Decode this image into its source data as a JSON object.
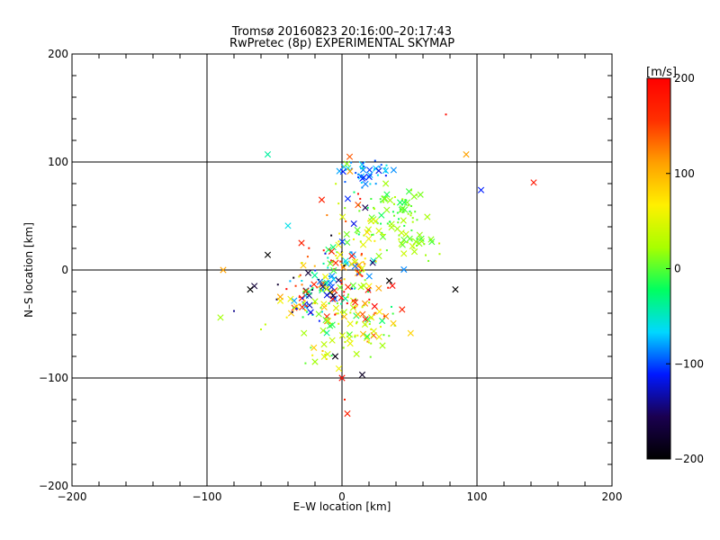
{
  "chart_data": {
    "type": "scatter",
    "title": "Tromsø 20160823 20:16:00–20:17:43",
    "subtitle": "RwPretec (8p) EXPERIMENTAL SKYMAP",
    "xlabel": "E–W location [km]",
    "ylabel": "N–S location [km]",
    "xlim": [
      -200,
      200
    ],
    "ylim": [
      -200,
      200
    ],
    "x_ticks": [
      -200,
      -100,
      0,
      100,
      200
    ],
    "y_ticks": [
      -200,
      -100,
      0,
      100,
      200
    ],
    "x_tick_labels": [
      "−200",
      "−100",
      "0",
      "100",
      "200"
    ],
    "y_tick_labels": [
      "−200",
      "−100",
      "0",
      "100",
      "200"
    ],
    "grid": true,
    "colorbar": {
      "label": "[m/s]",
      "range": [
        -200,
        200
      ],
      "ticks": [
        200,
        100,
        0,
        -100,
        -200
      ],
      "tick_labels": [
        "200",
        "100",
        "0",
        "−100",
        "−200"
      ],
      "colormap": [
        "#000000",
        "#1a0050",
        "#0018ff",
        "#00d8ff",
        "#00ff60",
        "#a8ff00",
        "#fff000",
        "#ffa000",
        "#ff3000",
        "#ff0000"
      ]
    },
    "markers": {
      "large": "cross (x)",
      "small": "dot"
    },
    "points": [
      {
        "x": 77,
        "y": 144,
        "v": 190,
        "m": "d"
      },
      {
        "x": 92,
        "y": 107,
        "v": 110,
        "m": "x"
      },
      {
        "x": -55,
        "y": 107,
        "v": -40,
        "m": "x"
      },
      {
        "x": 103,
        "y": 74,
        "v": -110,
        "m": "x"
      },
      {
        "x": 142,
        "y": 81,
        "v": 180,
        "m": "x"
      },
      {
        "x": -15,
        "y": 65,
        "v": 170,
        "m": "x"
      },
      {
        "x": -40,
        "y": 41,
        "v": -60,
        "m": "x"
      },
      {
        "x": -88,
        "y": 0,
        "v": 110,
        "m": "x"
      },
      {
        "x": -90,
        "y": -44,
        "v": 20,
        "m": "x"
      },
      {
        "x": -68,
        "y": -18,
        "v": -200,
        "m": "x"
      },
      {
        "x": 84,
        "y": -18,
        "v": -200,
        "m": "x"
      },
      {
        "x": 15,
        "y": -97,
        "v": -180,
        "m": "x"
      },
      {
        "x": 0,
        "y": -100,
        "v": 190,
        "m": "x"
      },
      {
        "x": 4,
        "y": -133,
        "v": 170,
        "m": "x"
      },
      {
        "x": 2,
        "y": -120,
        "v": 170,
        "m": "d"
      },
      {
        "x": -30,
        "y": 25,
        "v": 170,
        "m": "x"
      },
      {
        "x": -55,
        "y": 14,
        "v": -200,
        "m": "x"
      },
      {
        "x": 35,
        "y": -10,
        "v": -200,
        "m": "x"
      },
      {
        "x": -5,
        "y": -80,
        "v": -190,
        "m": "x"
      },
      {
        "x": -20,
        "y": -85,
        "v": 20,
        "m": "x"
      },
      {
        "x": 30,
        "y": -70,
        "v": 20,
        "m": "x"
      },
      {
        "x": -80,
        "y": -38,
        "v": -140,
        "m": "d"
      },
      {
        "x": -60,
        "y": -55,
        "v": 30,
        "m": "d"
      }
    ],
    "clusters": [
      {
        "cx": 18,
        "cy": 92,
        "sx": 10,
        "sy": 6,
        "n": 40,
        "vmin": -120,
        "vmax": -40
      },
      {
        "cx": 40,
        "cy": 55,
        "sx": 12,
        "sy": 10,
        "n": 55,
        "vmin": -20,
        "vmax": 30
      },
      {
        "cx": 55,
        "cy": 25,
        "sx": 10,
        "sy": 8,
        "n": 30,
        "vmin": -10,
        "vmax": 40
      },
      {
        "cx": 22,
        "cy": 35,
        "sx": 12,
        "sy": 12,
        "n": 35,
        "vmin": -20,
        "vmax": 80
      },
      {
        "cx": 0,
        "cy": 5,
        "sx": 14,
        "sy": 12,
        "n": 90,
        "vmin": -200,
        "vmax": 200
      },
      {
        "cx": -25,
        "cy": -25,
        "sx": 14,
        "sy": 10,
        "n": 80,
        "vmin": -200,
        "vmax": 200
      },
      {
        "cx": 8,
        "cy": -35,
        "sx": 18,
        "sy": 14,
        "n": 70,
        "vmin": -40,
        "vmax": 200
      },
      {
        "cx": 15,
        "cy": -60,
        "sx": 16,
        "sy": 12,
        "n": 35,
        "vmin": -20,
        "vmax": 60
      },
      {
        "cx": -15,
        "cy": -70,
        "sx": 10,
        "sy": 10,
        "n": 12,
        "vmin": 0,
        "vmax": 100
      },
      {
        "cx": 0,
        "cy": 60,
        "sx": 10,
        "sy": 25,
        "n": 20,
        "vmin": -200,
        "vmax": 200
      }
    ]
  }
}
